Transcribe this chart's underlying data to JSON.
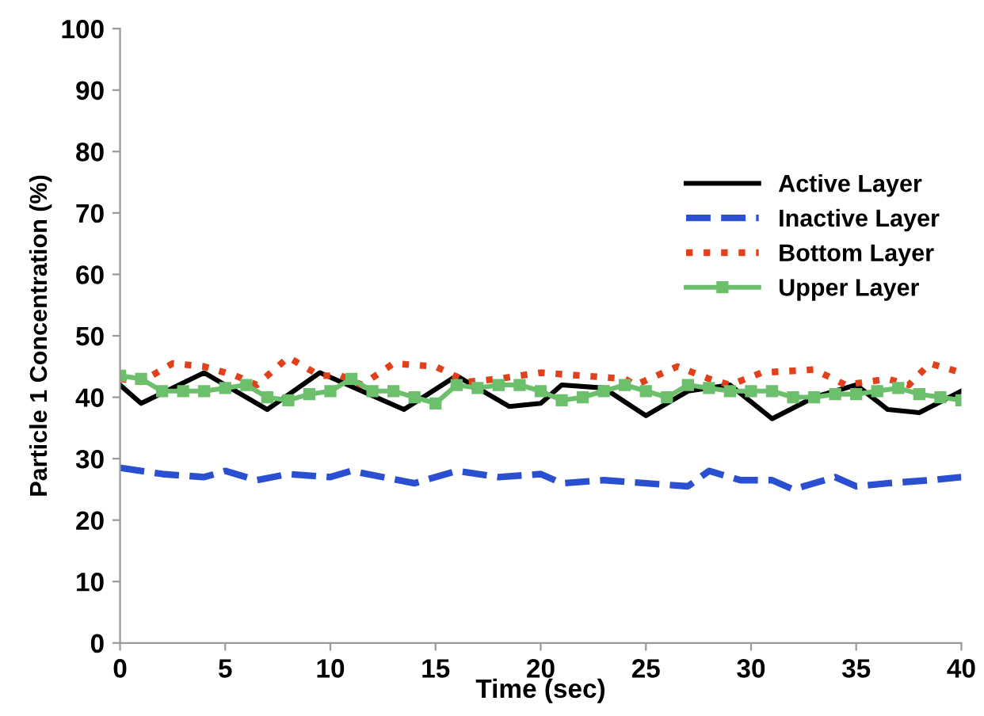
{
  "chart_data": {
    "type": "line",
    "xlabel": "Time (sec)",
    "ylabel": "Particle 1 Concentration (%)",
    "xlim": [
      0,
      40
    ],
    "xticks": [
      0,
      5,
      10,
      15,
      20,
      25,
      30,
      35,
      40
    ],
    "ylim": [
      0,
      100
    ],
    "yticks": [
      0,
      10,
      20,
      30,
      40,
      50,
      60,
      70,
      80,
      90,
      100
    ],
    "grid": false,
    "legend": "right",
    "series": [
      {
        "name": "Active Layer",
        "color": "#000000",
        "line_style": "solid",
        "marker": "none",
        "x": [
          0,
          1,
          4,
          7,
          9.5,
          13.5,
          16,
          18.5,
          20,
          21,
          23,
          25,
          27,
          29,
          31,
          33,
          35,
          36.5,
          38,
          40
        ],
        "values": [
          42,
          39,
          44,
          38,
          44,
          38,
          43.5,
          38.5,
          39,
          42,
          41.5,
          37,
          41,
          42,
          36.5,
          40,
          42,
          38,
          37.5,
          41
        ]
      },
      {
        "name": "Inactive Layer",
        "color": "#2a4fd0",
        "line_style": "dashed",
        "marker": "none",
        "x": [
          0,
          2,
          4,
          5,
          6.5,
          8,
          10,
          11,
          14,
          16,
          18,
          20,
          21,
          23,
          25,
          27,
          28,
          29.5,
          31,
          32,
          34,
          35,
          36.5,
          38.5,
          40
        ],
        "values": [
          28.5,
          27.5,
          27,
          28,
          26.5,
          27.5,
          27,
          28,
          26,
          28,
          27,
          27.5,
          26,
          26.5,
          26,
          25.5,
          28,
          26.5,
          26.5,
          25,
          27,
          25.5,
          26,
          26.5,
          27
        ]
      },
      {
        "name": "Bottom Layer",
        "color": "#e0401a",
        "line_style": "dotted",
        "marker": "none",
        "x": [
          0,
          1,
          2.5,
          4,
          5.5,
          6.5,
          8,
          9.5,
          10.5,
          11.5,
          13,
          15,
          16.5,
          18,
          20,
          22,
          24,
          24.5,
          26.5,
          28,
          29,
          30.5,
          33,
          34.5,
          36.5,
          37.5,
          38.5,
          40
        ],
        "values": [
          43,
          42.5,
          45.5,
          45,
          43.5,
          42,
          46.5,
          43.5,
          43.5,
          42,
          45.5,
          45,
          42.5,
          43,
          44,
          43.5,
          43,
          42,
          45,
          43,
          42,
          44,
          44.5,
          42,
          43,
          42,
          45.5,
          44
        ]
      },
      {
        "name": "Upper Layer",
        "color": "#6cc06c",
        "line_style": "solid",
        "marker": "square",
        "x": [
          0,
          1,
          2,
          3,
          4,
          5,
          6,
          7,
          8,
          9,
          10,
          11,
          12,
          13,
          14,
          15,
          16,
          17,
          18,
          19,
          20,
          21,
          22,
          23,
          24,
          25,
          26,
          27,
          28,
          29,
          30,
          31,
          32,
          33,
          34,
          35,
          36,
          37,
          38,
          39,
          40
        ],
        "values": [
          43.5,
          43,
          41,
          41,
          41,
          41.5,
          42,
          40,
          39.5,
          40.5,
          41,
          43,
          41,
          41,
          40,
          39,
          42,
          41.5,
          42,
          42,
          41,
          39.5,
          40,
          41,
          42,
          41,
          40,
          42,
          41.5,
          41,
          41,
          41,
          40,
          40,
          40.5,
          40.5,
          41,
          41.5,
          40.5,
          40,
          39.5
        ]
      }
    ]
  }
}
